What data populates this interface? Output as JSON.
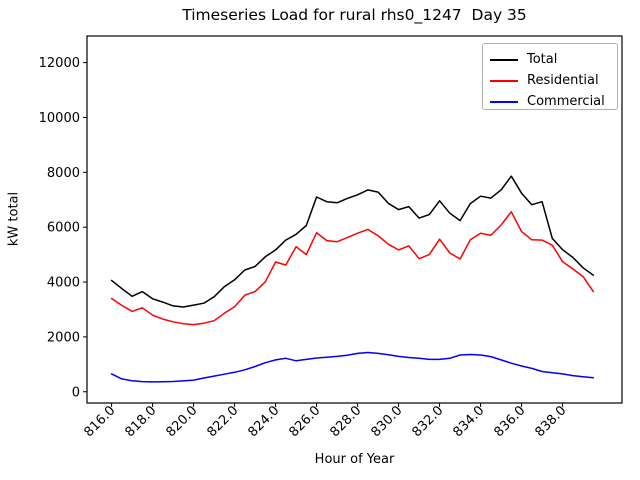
{
  "window": {
    "background_color": "#ffffff"
  },
  "chart_data": {
    "type": "line",
    "title": "Timeseries Load for rural rhs0_1247  Day 35",
    "xlabel": "Hour of Year",
    "ylabel": "kW total",
    "xlim": [
      814.8,
      840.9
    ],
    "ylim": [
      -410,
      12970
    ],
    "xticks": [
      816.0,
      818.0,
      820.0,
      822.0,
      824.0,
      826.0,
      828.0,
      830.0,
      832.0,
      834.0,
      836.0,
      838.0
    ],
    "xtick_label_format": "one_decimal_rotated_45",
    "yticks": [
      0,
      2000,
      4000,
      6000,
      8000,
      10000,
      12000
    ],
    "grid": false,
    "legend_position": "upper right",
    "axis_color": "#000000",
    "x": [
      816.0,
      816.5,
      817.0,
      817.5,
      818.0,
      818.5,
      819.0,
      819.5,
      820.0,
      820.5,
      821.0,
      821.5,
      822.0,
      822.5,
      823.0,
      823.5,
      824.0,
      824.5,
      825.0,
      825.5,
      826.0,
      826.5,
      827.0,
      827.5,
      828.0,
      828.5,
      829.0,
      829.5,
      830.0,
      830.5,
      831.0,
      831.5,
      832.0,
      832.5,
      833.0,
      833.5,
      834.0,
      834.5,
      835.0,
      835.5,
      836.0,
      836.5,
      837.0,
      837.5,
      838.0,
      838.5,
      839.0,
      839.5
    ],
    "series": [
      {
        "name": "Total",
        "color": "#000000",
        "values": [
          4060,
          3760,
          3480,
          3650,
          3390,
          3270,
          3130,
          3090,
          3160,
          3230,
          3460,
          3830,
          4080,
          4440,
          4570,
          4920,
          5170,
          5530,
          5740,
          6060,
          7100,
          6930,
          6890,
          7050,
          7180,
          7360,
          7280,
          6870,
          6640,
          6750,
          6330,
          6460,
          6960,
          6510,
          6240,
          6860,
          7130,
          7060,
          7360,
          7860,
          7240,
          6820,
          6930,
          5590,
          5180,
          4900,
          4520,
          4250
        ]
      },
      {
        "name": "Residential",
        "color": "#ff0000",
        "values": [
          3400,
          3150,
          2930,
          3060,
          2790,
          2650,
          2550,
          2480,
          2450,
          2500,
          2590,
          2860,
          3100,
          3520,
          3650,
          4010,
          4730,
          4620,
          5290,
          5000,
          5800,
          5510,
          5470,
          5620,
          5780,
          5920,
          5690,
          5380,
          5170,
          5320,
          4850,
          5000,
          5560,
          5060,
          4840,
          5540,
          5780,
          5700,
          6080,
          6560,
          5840,
          5540,
          5530,
          5340,
          4740,
          4480,
          4200,
          3650
        ]
      },
      {
        "name": "Commercial",
        "color": "#0000ff",
        "values": [
          650,
          470,
          400,
          370,
          360,
          365,
          375,
          395,
          425,
          500,
          570,
          640,
          710,
          800,
          920,
          1060,
          1160,
          1220,
          1130,
          1180,
          1230,
          1260,
          1290,
          1330,
          1400,
          1430,
          1400,
          1350,
          1290,
          1250,
          1220,
          1180,
          1180,
          1220,
          1340,
          1360,
          1340,
          1280,
          1160,
          1040,
          940,
          850,
          740,
          690,
          650,
          590,
          545,
          510
        ]
      }
    ]
  },
  "legend": {
    "items": [
      {
        "label": "Total",
        "color": "#000000"
      },
      {
        "label": "Residential",
        "color": "#ff0000"
      },
      {
        "label": "Commercial",
        "color": "#0000ff"
      }
    ]
  }
}
